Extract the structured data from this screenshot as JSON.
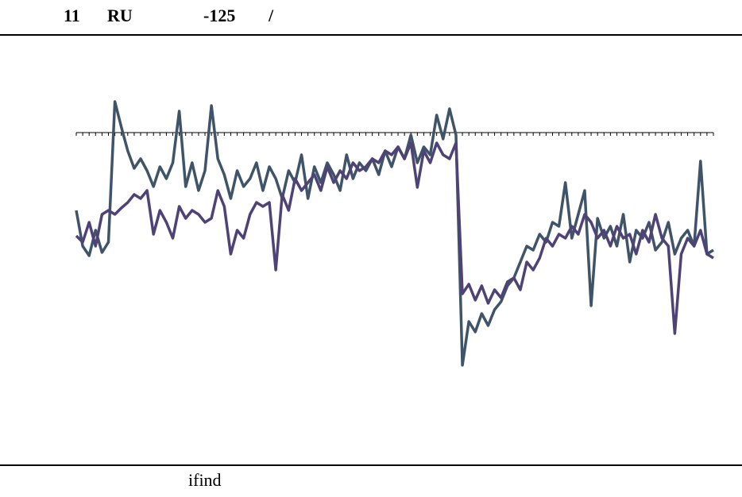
{
  "header": {
    "texts": [
      "11",
      "RU",
      "-125",
      "/"
    ]
  },
  "chart_data": {
    "type": "line",
    "categories": [
      null,
      null,
      null,
      null,
      null,
      null,
      null,
      null,
      null,
      null,
      null,
      null,
      null,
      null,
      null,
      null,
      null,
      null,
      null,
      null,
      null,
      null,
      null,
      null,
      null,
      null,
      null,
      null,
      null,
      null,
      null,
      null,
      null,
      null,
      null,
      null,
      null,
      null,
      null,
      null,
      null,
      null,
      null,
      null,
      null,
      null,
      null,
      null,
      null,
      null,
      null,
      null,
      null,
      null,
      null,
      null,
      null,
      null,
      null,
      null,
      null,
      null,
      null,
      null,
      null,
      null,
      null,
      null,
      null,
      null,
      null,
      null,
      null,
      null,
      null,
      null,
      null,
      null,
      null,
      null,
      null,
      null,
      null,
      null,
      null,
      null,
      null,
      null,
      null,
      null,
      null,
      null,
      null,
      null,
      null,
      null,
      null,
      null,
      null,
      null
    ],
    "series": [
      {
        "color": "#3f5468",
        "values": [
          -9.8,
          -14.3,
          -15.5,
          -12.3,
          -15.1,
          -13.8,
          3.9,
          0.7,
          -2.3,
          -4.5,
          -3.3,
          -4.8,
          -6.8,
          -4.3,
          -5.8,
          -3.8,
          2.7,
          -6.8,
          -3.8,
          -7.3,
          -4.8,
          3.4,
          -3.3,
          -5.3,
          -8.3,
          -4.8,
          -6.8,
          -5.8,
          -3.8,
          -7.3,
          -4.3,
          -5.8,
          -8.3,
          -4.8,
          -6.3,
          -2.8,
          -8.3,
          -4.3,
          -6.3,
          -3.8,
          -5.3,
          -7.3,
          -2.8,
          -5.8,
          -3.8,
          -4.8,
          -3.3,
          -5.3,
          -2.3,
          -4.3,
          -1.8,
          -3.3,
          -0.3,
          -3.8,
          -1.8,
          -2.8,
          2.2,
          -0.8,
          3.0,
          -0.3,
          -29.3,
          -23.8,
          -25.1,
          -22.8,
          -24.3,
          -22.3,
          -21.3,
          -19.3,
          -18.3,
          -16.3,
          -14.3,
          -14.8,
          -12.8,
          -13.8,
          -11.3,
          -11.8,
          -6.3,
          -13.3,
          -10.3,
          -7.3,
          -21.8,
          -10.8,
          -13.3,
          -11.8,
          -14.3,
          -10.3,
          -16.3,
          -12.3,
          -13.3,
          -11.3,
          -14.8,
          -13.8,
          -11.3,
          -15.3,
          -13.3,
          -12.3,
          -14.3,
          -3.6,
          -15.3,
          -14.8
        ]
      },
      {
        "color": "#4f4276",
        "values": [
          -13.0,
          -13.8,
          -11.3,
          -14.3,
          -10.3,
          -9.8,
          -10.3,
          -9.5,
          -8.8,
          -7.8,
          -8.3,
          -7.3,
          -12.8,
          -9.8,
          -11.3,
          -13.3,
          -9.3,
          -10.8,
          -9.8,
          -10.3,
          -11.3,
          -10.8,
          -7.3,
          -9.3,
          -15.3,
          -12.3,
          -13.3,
          -10.3,
          -8.8,
          -9.3,
          -8.8,
          -17.3,
          -7.8,
          -9.8,
          -5.8,
          -7.3,
          -6.3,
          -5.3,
          -7.3,
          -4.3,
          -6.3,
          -4.8,
          -5.8,
          -3.8,
          -4.8,
          -4.3,
          -3.3,
          -3.8,
          -2.3,
          -2.8,
          -1.8,
          -3.3,
          -1.3,
          -6.9,
          -2.3,
          -3.8,
          -1.3,
          -2.8,
          -3.3,
          -1.3,
          -20.3,
          -19.1,
          -21.1,
          -19.3,
          -21.5,
          -19.8,
          -20.8,
          -18.8,
          -18.3,
          -19.8,
          -16.3,
          -17.3,
          -15.8,
          -13.3,
          -14.3,
          -12.8,
          -13.3,
          -11.8,
          -12.8,
          -10.3,
          -11.3,
          -13.3,
          -12.3,
          -14.3,
          -11.8,
          -13.3,
          -12.8,
          -15.3,
          -12.3,
          -13.8,
          -10.3,
          -13.3,
          -14.3,
          -25.3,
          -15.3,
          -13.3,
          -14.3,
          -12.3,
          -15.3,
          -15.8
        ]
      }
    ],
    "ylim": [
      -39,
      6
    ],
    "yticks": [
      0
    ]
  },
  "footer": {
    "source": "ifind"
  }
}
